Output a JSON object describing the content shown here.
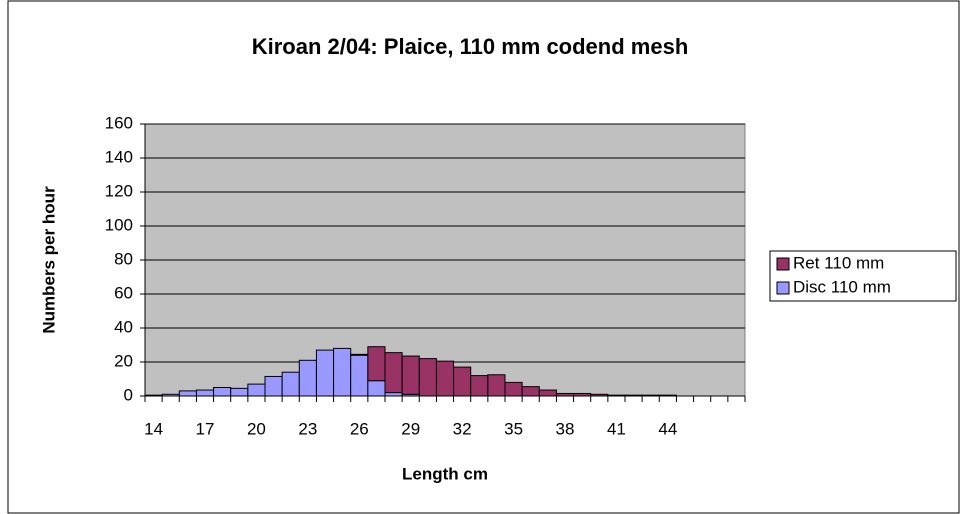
{
  "chart_data": {
    "type": "bar",
    "stacked": true,
    "title": "Kiroan 2/04: Plaice, 110 mm codend mesh",
    "x_label": "Length cm",
    "y_label": "Numbers per hour",
    "categories": [
      14,
      null,
      null,
      17,
      null,
      null,
      20,
      null,
      null,
      23,
      null,
      null,
      26,
      null,
      null,
      29,
      null,
      null,
      32,
      null,
      null,
      35,
      null,
      null,
      38,
      null,
      null,
      41,
      null,
      null,
      44,
      null,
      null,
      null,
      null
    ],
    "series": [
      {
        "name": "Disc 110 mm",
        "color": "#9999ff",
        "values": [
          0.5,
          1,
          3,
          3.5,
          5,
          4.5,
          7,
          11.5,
          14,
          21,
          27,
          28,
          24,
          9,
          2,
          1,
          0,
          0,
          0,
          0,
          0,
          0,
          0,
          0,
          0,
          0,
          0,
          0,
          0,
          0,
          0,
          0,
          0,
          0,
          0
        ]
      },
      {
        "name": "Ret 110 mm",
        "color": "#993366",
        "values": [
          0,
          0,
          0,
          0,
          0,
          0,
          0,
          0,
          0,
          0,
          0,
          0,
          0.5,
          20,
          23.5,
          22.5,
          22,
          20.5,
          17,
          12,
          12.5,
          8,
          5.5,
          3.5,
          1.5,
          1.5,
          1,
          0.5,
          0.5,
          0.5,
          0.5,
          0,
          0,
          0,
          0
        ]
      }
    ],
    "ylim": [
      0,
      160
    ],
    "yticks": [
      0,
      20,
      40,
      60,
      80,
      100,
      120,
      140,
      160
    ],
    "grid": true,
    "legend": "right",
    "plot_background": "#c0c0c0"
  }
}
